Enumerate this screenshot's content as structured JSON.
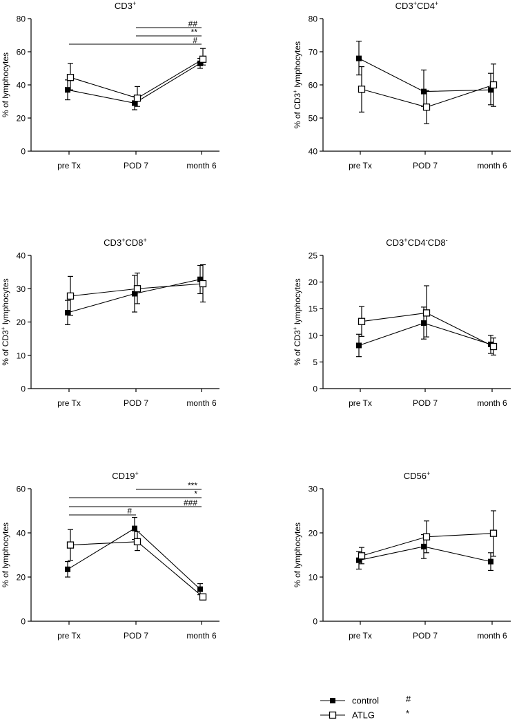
{
  "colors": {
    "ink": "#000000",
    "open_fill": "#ffffff"
  },
  "legend": {
    "items": [
      {
        "name": "control",
        "marker": "filled-square",
        "sig_symbol": "#"
      },
      {
        "name": "ATLG",
        "marker": "open-square",
        "sig_symbol": "*"
      }
    ]
  },
  "chart_data": [
    {
      "id": "cd3",
      "type": "line",
      "title_parts": [
        [
          "CD3",
          "n"
        ],
        [
          "+",
          "sup"
        ]
      ],
      "ylabel_parts": [
        [
          "% of lymphocytes",
          "n"
        ]
      ],
      "categories": [
        "pre Tx",
        "POD 7",
        "month 6"
      ],
      "ylim": [
        0,
        80
      ],
      "yticks": [
        0,
        20,
        40,
        60,
        80
      ],
      "series": [
        {
          "name": "control",
          "marker": "filled",
          "values": [
            37,
            29,
            53
          ],
          "err_low": [
            31,
            25,
            50
          ],
          "err_high": [
            43,
            33,
            56
          ]
        },
        {
          "name": "ATLG",
          "marker": "open",
          "values": [
            44.5,
            32,
            55.5
          ],
          "err_low": [
            37,
            27,
            52
          ],
          "err_high": [
            53,
            39,
            62
          ]
        }
      ],
      "brackets": [
        {
          "from": 1,
          "to": 2,
          "label": "##"
        },
        {
          "from": 1,
          "to": 2,
          "label": "**"
        },
        {
          "from": 0,
          "to": 2,
          "label": "#"
        }
      ]
    },
    {
      "id": "cd3cd4",
      "type": "line",
      "title_parts": [
        [
          "CD3",
          "n"
        ],
        [
          "+",
          "sup"
        ],
        [
          "CD4",
          "n"
        ],
        [
          "+",
          "sup"
        ]
      ],
      "ylabel_parts": [
        [
          "% of CD3",
          "n"
        ],
        [
          "+",
          "sup"
        ],
        [
          " lymphocytes",
          "n"
        ]
      ],
      "categories": [
        "pre Tx",
        "POD 7",
        "month 6"
      ],
      "ylim": [
        40,
        80
      ],
      "yticks": [
        40,
        50,
        60,
        70,
        80
      ],
      "series": [
        {
          "name": "control",
          "marker": "filled",
          "values": [
            68,
            58,
            58.5
          ],
          "err_low": [
            63,
            53.5,
            54
          ],
          "err_high": [
            73.2,
            64.5,
            63.5
          ]
        },
        {
          "name": "ATLG",
          "marker": "open",
          "values": [
            58.7,
            53.3,
            60
          ],
          "err_low": [
            51.8,
            48.3,
            53.5
          ],
          "err_high": [
            65.5,
            58.3,
            66.3
          ]
        }
      ],
      "brackets": []
    },
    {
      "id": "cd3cd8",
      "type": "line",
      "title_parts": [
        [
          "CD3",
          "n"
        ],
        [
          "+",
          "sup"
        ],
        [
          "CD8",
          "n"
        ],
        [
          "+",
          "sup"
        ]
      ],
      "ylabel_parts": [
        [
          "% of CD3",
          "n"
        ],
        [
          "+",
          "sup"
        ],
        [
          " lymphocytes",
          "n"
        ]
      ],
      "categories": [
        "pre Tx",
        "POD 7",
        "month 6"
      ],
      "ylim": [
        0,
        40
      ],
      "yticks": [
        0,
        10,
        20,
        30,
        40
      ],
      "series": [
        {
          "name": "control",
          "marker": "filled",
          "values": [
            22.8,
            28.5,
            32.8
          ],
          "err_low": [
            19.2,
            23,
            28.5
          ],
          "err_high": [
            26.5,
            34,
            37
          ]
        },
        {
          "name": "ATLG",
          "marker": "open",
          "values": [
            27.8,
            30,
            31.5
          ],
          "err_low": [
            22,
            25.5,
            26
          ],
          "err_high": [
            33.7,
            34.7,
            37.2
          ]
        }
      ],
      "brackets": []
    },
    {
      "id": "cd3dn",
      "type": "line",
      "title_parts": [
        [
          "CD3",
          "n"
        ],
        [
          "+",
          "sup"
        ],
        [
          "CD4",
          "n"
        ],
        [
          "-",
          "sup"
        ],
        [
          "CD8",
          "n"
        ],
        [
          "-",
          "sup"
        ]
      ],
      "ylabel_parts": [
        [
          "% of CD3",
          "n"
        ],
        [
          "+",
          "sup"
        ],
        [
          " lymphocytes",
          "n"
        ]
      ],
      "categories": [
        "pre Tx",
        "POD 7",
        "month 6"
      ],
      "ylim": [
        0,
        25
      ],
      "yticks": [
        0,
        5,
        10,
        15,
        20,
        25
      ],
      "series": [
        {
          "name": "control",
          "marker": "filled",
          "values": [
            8.1,
            12.3,
            8.3
          ],
          "err_low": [
            6,
            9.3,
            6.6
          ],
          "err_high": [
            10.2,
            15.3,
            10
          ]
        },
        {
          "name": "ATLG",
          "marker": "open",
          "values": [
            12.6,
            14.2,
            7.9
          ],
          "err_low": [
            9.8,
            9.7,
            6.3
          ],
          "err_high": [
            15.4,
            19.3,
            9.5
          ]
        }
      ],
      "brackets": []
    },
    {
      "id": "cd19",
      "type": "line",
      "title_parts": [
        [
          "CD19",
          "n"
        ],
        [
          "+",
          "sup"
        ]
      ],
      "ylabel_parts": [
        [
          "% of lymphocytes",
          "n"
        ]
      ],
      "categories": [
        "pre Tx",
        "POD 7",
        "month 6"
      ],
      "ylim": [
        0,
        60
      ],
      "yticks": [
        0,
        20,
        40,
        60
      ],
      "series": [
        {
          "name": "control",
          "marker": "filled",
          "values": [
            23.5,
            42,
            14.5
          ],
          "err_low": [
            20,
            37,
            12
          ],
          "err_high": [
            27,
            47,
            17
          ]
        },
        {
          "name": "ATLG",
          "marker": "open",
          "values": [
            34.5,
            36,
            11
          ],
          "err_low": [
            27.5,
            32,
            10
          ],
          "err_high": [
            41.5,
            40.5,
            12
          ]
        }
      ],
      "brackets": [
        {
          "from": 1,
          "to": 2,
          "label": "***"
        },
        {
          "from": 0,
          "to": 2,
          "label": "*"
        },
        {
          "from": 0,
          "to": 2,
          "label": "###"
        },
        {
          "from": 0,
          "to": 1,
          "label": "#"
        }
      ]
    },
    {
      "id": "cd56",
      "type": "line",
      "title_parts": [
        [
          "CD56",
          "n"
        ],
        [
          "+",
          "sup"
        ]
      ],
      "ylabel_parts": [
        [
          "% of lymphocytes",
          "n"
        ]
      ],
      "categories": [
        "pre Tx",
        "POD 7",
        "month 6"
      ],
      "ylim": [
        0,
        30
      ],
      "yticks": [
        0,
        10,
        20,
        30
      ],
      "series": [
        {
          "name": "control",
          "marker": "filled",
          "values": [
            13.8,
            16.9,
            13.5
          ],
          "err_low": [
            11.8,
            14.2,
            11.5
          ],
          "err_high": [
            15.8,
            19.6,
            15.5
          ]
        },
        {
          "name": "ATLG",
          "marker": "open",
          "values": [
            14.8,
            19.1,
            19.9
          ],
          "err_low": [
            13,
            15.5,
            14.7
          ],
          "err_high": [
            16.7,
            22.7,
            25
          ]
        }
      ],
      "brackets": []
    }
  ]
}
